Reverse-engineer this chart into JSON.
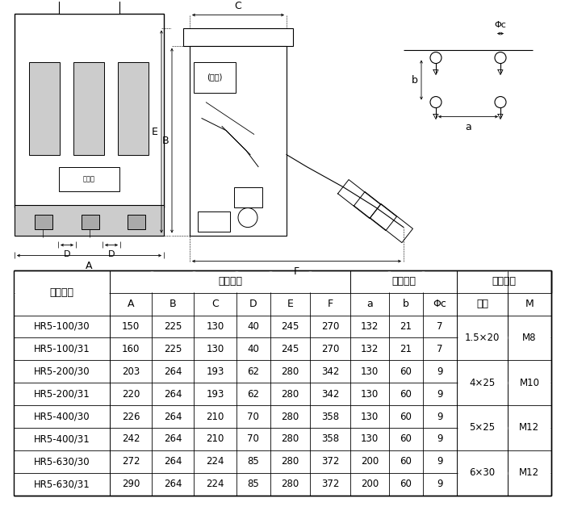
{
  "bg_color": "#ffffff",
  "line_color": "#000000",
  "table_data": [
    [
      "HR5-100/30",
      "150",
      "225",
      "130",
      "40",
      "245",
      "270",
      "132",
      "21",
      "7",
      "1.5×20",
      "M8"
    ],
    [
      "HR5-100/31",
      "160",
      "225",
      "130",
      "40",
      "245",
      "270",
      "132",
      "21",
      "7",
      "",
      ""
    ],
    [
      "HR5-200/30",
      "203",
      "264",
      "193",
      "62",
      "280",
      "342",
      "130",
      "60",
      "9",
      "4×25",
      "M10"
    ],
    [
      "HR5-200/31",
      "220",
      "264",
      "193",
      "62",
      "280",
      "342",
      "130",
      "60",
      "9",
      "",
      ""
    ],
    [
      "HR5-400/30",
      "226",
      "264",
      "210",
      "70",
      "280",
      "358",
      "130",
      "60",
      "9",
      "5×25",
      "M12"
    ],
    [
      "HR5-400/31",
      "242",
      "264",
      "210",
      "70",
      "280",
      "358",
      "130",
      "60",
      "9",
      "",
      ""
    ],
    [
      "HR5-630/30",
      "272",
      "264",
      "224",
      "85",
      "280",
      "372",
      "200",
      "60",
      "9",
      "6×30",
      "M12"
    ],
    [
      "HR5-630/31",
      "290",
      "264",
      "224",
      "85",
      "280",
      "372",
      "200",
      "60",
      "9",
      "",
      ""
    ]
  ],
  "font_size": 8.5
}
